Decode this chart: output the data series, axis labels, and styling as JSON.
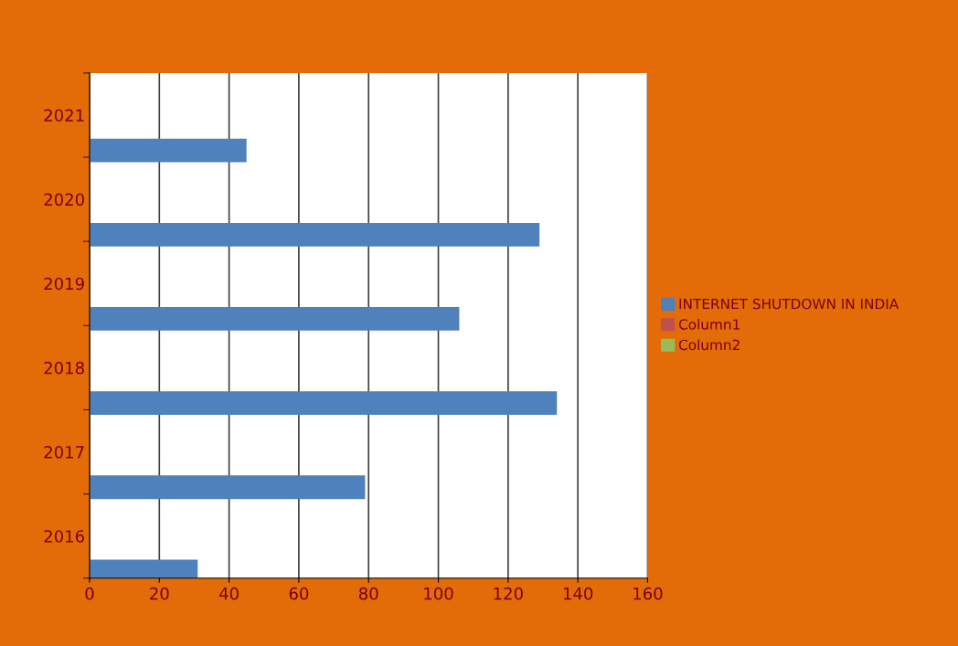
{
  "chart_data": {
    "type": "bar",
    "orientation": "horizontal",
    "categories": [
      "2021",
      "2020",
      "2019",
      "2018",
      "2017",
      "2016"
    ],
    "series": [
      {
        "name": "INTERNET SHUTDOWN IN INDIA",
        "color": "#4f81bd",
        "values": [
          45,
          129,
          106,
          134,
          79,
          31
        ]
      },
      {
        "name": "Column1",
        "color": "#c0504d",
        "values": [
          null,
          null,
          null,
          null,
          null,
          null
        ]
      },
      {
        "name": "Column2",
        "color": "#9bbb59",
        "values": [
          null,
          null,
          null,
          null,
          null,
          null
        ]
      }
    ],
    "xlim": [
      0,
      160
    ],
    "xticks": [
      0,
      20,
      40,
      60,
      80,
      100,
      120,
      140,
      160
    ],
    "grid": "x",
    "legend": "right"
  }
}
